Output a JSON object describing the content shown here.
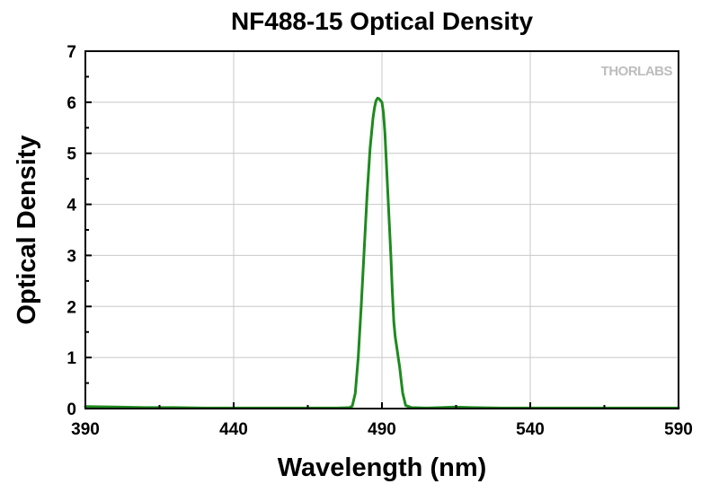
{
  "chart_data": {
    "type": "line",
    "title": "NF488-15 Optical Density",
    "xlabel": "Wavelength (nm)",
    "ylabel": "Optical Density",
    "xlim": [
      390,
      590
    ],
    "ylim": [
      0,
      7
    ],
    "x_ticks": [
      390,
      440,
      490,
      540,
      590
    ],
    "y_ticks": [
      0,
      1,
      2,
      3,
      4,
      5,
      6,
      7
    ],
    "grid": true,
    "watermark": "THORLABS",
    "line_color": "#1e8a1e",
    "series": [
      {
        "x": [
          390,
          400,
          410,
          420,
          430,
          440,
          450,
          460,
          470,
          475,
          479,
          480,
          481,
          482,
          483,
          484,
          485,
          486,
          487,
          487.5,
          488,
          488.5,
          489,
          490,
          490.5,
          491,
          492,
          493,
          493.5,
          494,
          494.5,
          495,
          495.5,
          496,
          496.5,
          497,
          498,
          500,
          505,
          510,
          515,
          520,
          530,
          540,
          550,
          560,
          570,
          580,
          590
        ],
        "y": [
          0.04,
          0.03,
          0.02,
          0.02,
          0.01,
          0.01,
          0.01,
          0.01,
          0.01,
          0.01,
          0.02,
          0.05,
          0.3,
          1.0,
          2.0,
          3.1,
          4.2,
          5.1,
          5.7,
          5.9,
          6.03,
          6.08,
          6.07,
          6.0,
          5.8,
          5.4,
          4.2,
          3.0,
          2.3,
          1.7,
          1.4,
          1.2,
          1.0,
          0.8,
          0.55,
          0.3,
          0.06,
          0.02,
          0.01,
          0.02,
          0.03,
          0.02,
          0.01,
          0.01,
          0.01,
          0.01,
          0.01,
          0.01,
          0.01
        ]
      }
    ]
  }
}
